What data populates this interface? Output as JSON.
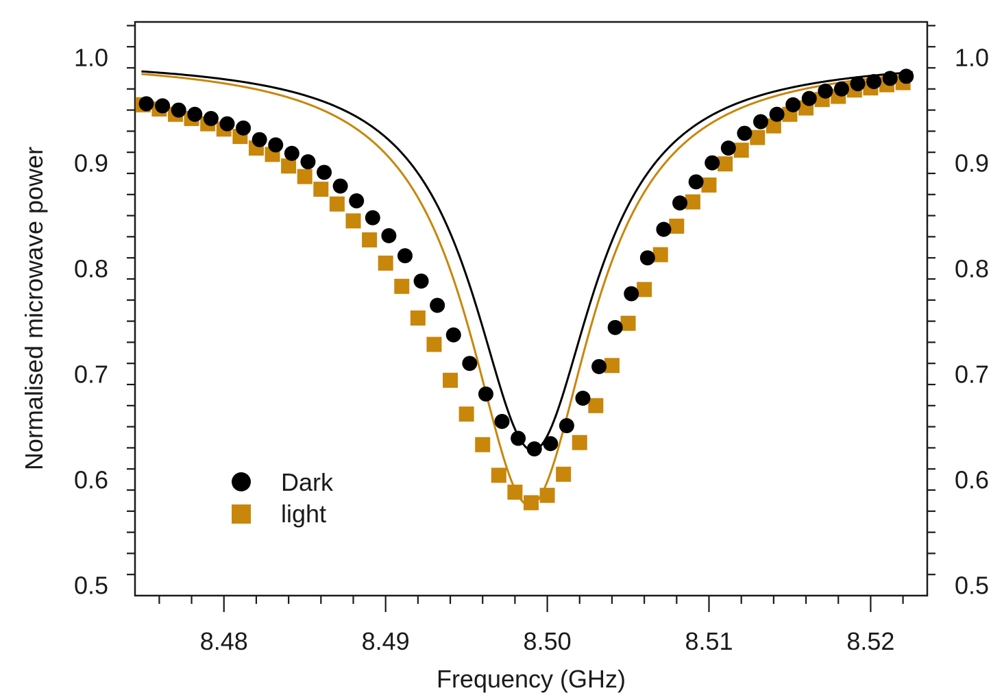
{
  "chart_data": {
    "type": "scatter",
    "xlabel": "Frequency (GHz)",
    "ylabel": "Normalised microwave power",
    "xlim": [
      8.4745,
      8.5235
    ],
    "ylim": [
      0.49,
      1.0335
    ],
    "x_ticks": [
      8.48,
      8.49,
      8.5,
      8.51,
      8.52
    ],
    "x_tick_labels": [
      "8.48",
      "8.49",
      "8.50",
      "8.51",
      "8.52"
    ],
    "x_minor_step": 0.002,
    "y_ticks": [
      0.5,
      0.6,
      0.7,
      0.8,
      0.9,
      1.0
    ],
    "y_tick_labels": [
      "0.5",
      "0.6",
      "0.7",
      "0.8",
      "0.9",
      "1.0"
    ],
    "y_minor_step": 0.02,
    "grid": false,
    "mirrored_right_axis": true,
    "legend_position": "lower-left",
    "series": [
      {
        "name": "Dark",
        "marker": "circle",
        "color": "#000000",
        "x": [
          8.4752,
          8.4762,
          8.4772,
          8.4782,
          8.4792,
          8.4802,
          8.4812,
          8.4822,
          8.4832,
          8.4842,
          8.4852,
          8.4862,
          8.4872,
          8.4882,
          8.4892,
          8.4902,
          8.4912,
          8.4922,
          8.4932,
          8.4942,
          8.4952,
          8.4962,
          8.4972,
          8.4982,
          8.4992,
          8.5002,
          8.5012,
          8.5022,
          8.5032,
          8.5042,
          8.5052,
          8.5062,
          8.5072,
          8.5082,
          8.5092,
          8.5102,
          8.5112,
          8.5122,
          8.5132,
          8.5142,
          8.5152,
          8.5162,
          8.5172,
          8.5182,
          8.5192,
          8.5202,
          8.5212,
          8.5222
        ],
        "y": [
          0.956,
          0.954,
          0.95,
          0.946,
          0.942,
          0.937,
          0.933,
          0.922,
          0.917,
          0.909,
          0.901,
          0.891,
          0.878,
          0.864,
          0.848,
          0.831,
          0.812,
          0.788,
          0.765,
          0.737,
          0.71,
          0.681,
          0.655,
          0.639,
          0.629,
          0.634,
          0.651,
          0.677,
          0.707,
          0.744,
          0.776,
          0.81,
          0.837,
          0.862,
          0.882,
          0.9,
          0.914,
          0.928,
          0.939,
          0.946,
          0.955,
          0.961,
          0.968,
          0.97,
          0.975,
          0.977,
          0.98,
          0.982
        ]
      },
      {
        "name": "light",
        "marker": "square",
        "color": "#c8860a",
        "x": [
          8.475,
          8.476,
          8.477,
          8.478,
          8.479,
          8.48,
          8.481,
          8.482,
          8.483,
          8.484,
          8.485,
          8.486,
          8.487,
          8.488,
          8.489,
          8.49,
          8.491,
          8.492,
          8.493,
          8.494,
          8.495,
          8.496,
          8.497,
          8.498,
          8.499,
          8.5,
          8.501,
          8.502,
          8.503,
          8.504,
          8.505,
          8.506,
          8.507,
          8.508,
          8.509,
          8.51,
          8.511,
          8.512,
          8.513,
          8.514,
          8.515,
          8.516,
          8.517,
          8.518,
          8.519,
          8.52,
          8.521,
          8.522
        ],
        "y": [
          0.955,
          0.951,
          0.946,
          0.942,
          0.937,
          0.932,
          0.925,
          0.914,
          0.908,
          0.897,
          0.887,
          0.875,
          0.861,
          0.845,
          0.827,
          0.805,
          0.783,
          0.753,
          0.728,
          0.694,
          0.662,
          0.633,
          0.604,
          0.588,
          0.578,
          0.585,
          0.605,
          0.635,
          0.67,
          0.708,
          0.748,
          0.78,
          0.813,
          0.84,
          0.863,
          0.879,
          0.899,
          0.912,
          0.924,
          0.935,
          0.946,
          0.952,
          0.96,
          0.963,
          0.969,
          0.971,
          0.974,
          0.976
        ]
      },
      {
        "name": "",
        "type": "line",
        "color": "#000000",
        "fit": {
          "baseline": 0.9995,
          "depth": 0.372,
          "center": 8.4991,
          "halfwidth": 0.00458
        }
      },
      {
        "name": "",
        "type": "line",
        "color": "#c8860a",
        "fit": {
          "baseline": 0.9995,
          "depth": 0.424,
          "center": 8.4989,
          "halfwidth": 0.00465
        }
      }
    ],
    "legend": [
      {
        "label": "Dark",
        "marker": "circle",
        "color": "#000000"
      },
      {
        "label": "light",
        "marker": "square",
        "color": "#c8860a"
      }
    ]
  }
}
